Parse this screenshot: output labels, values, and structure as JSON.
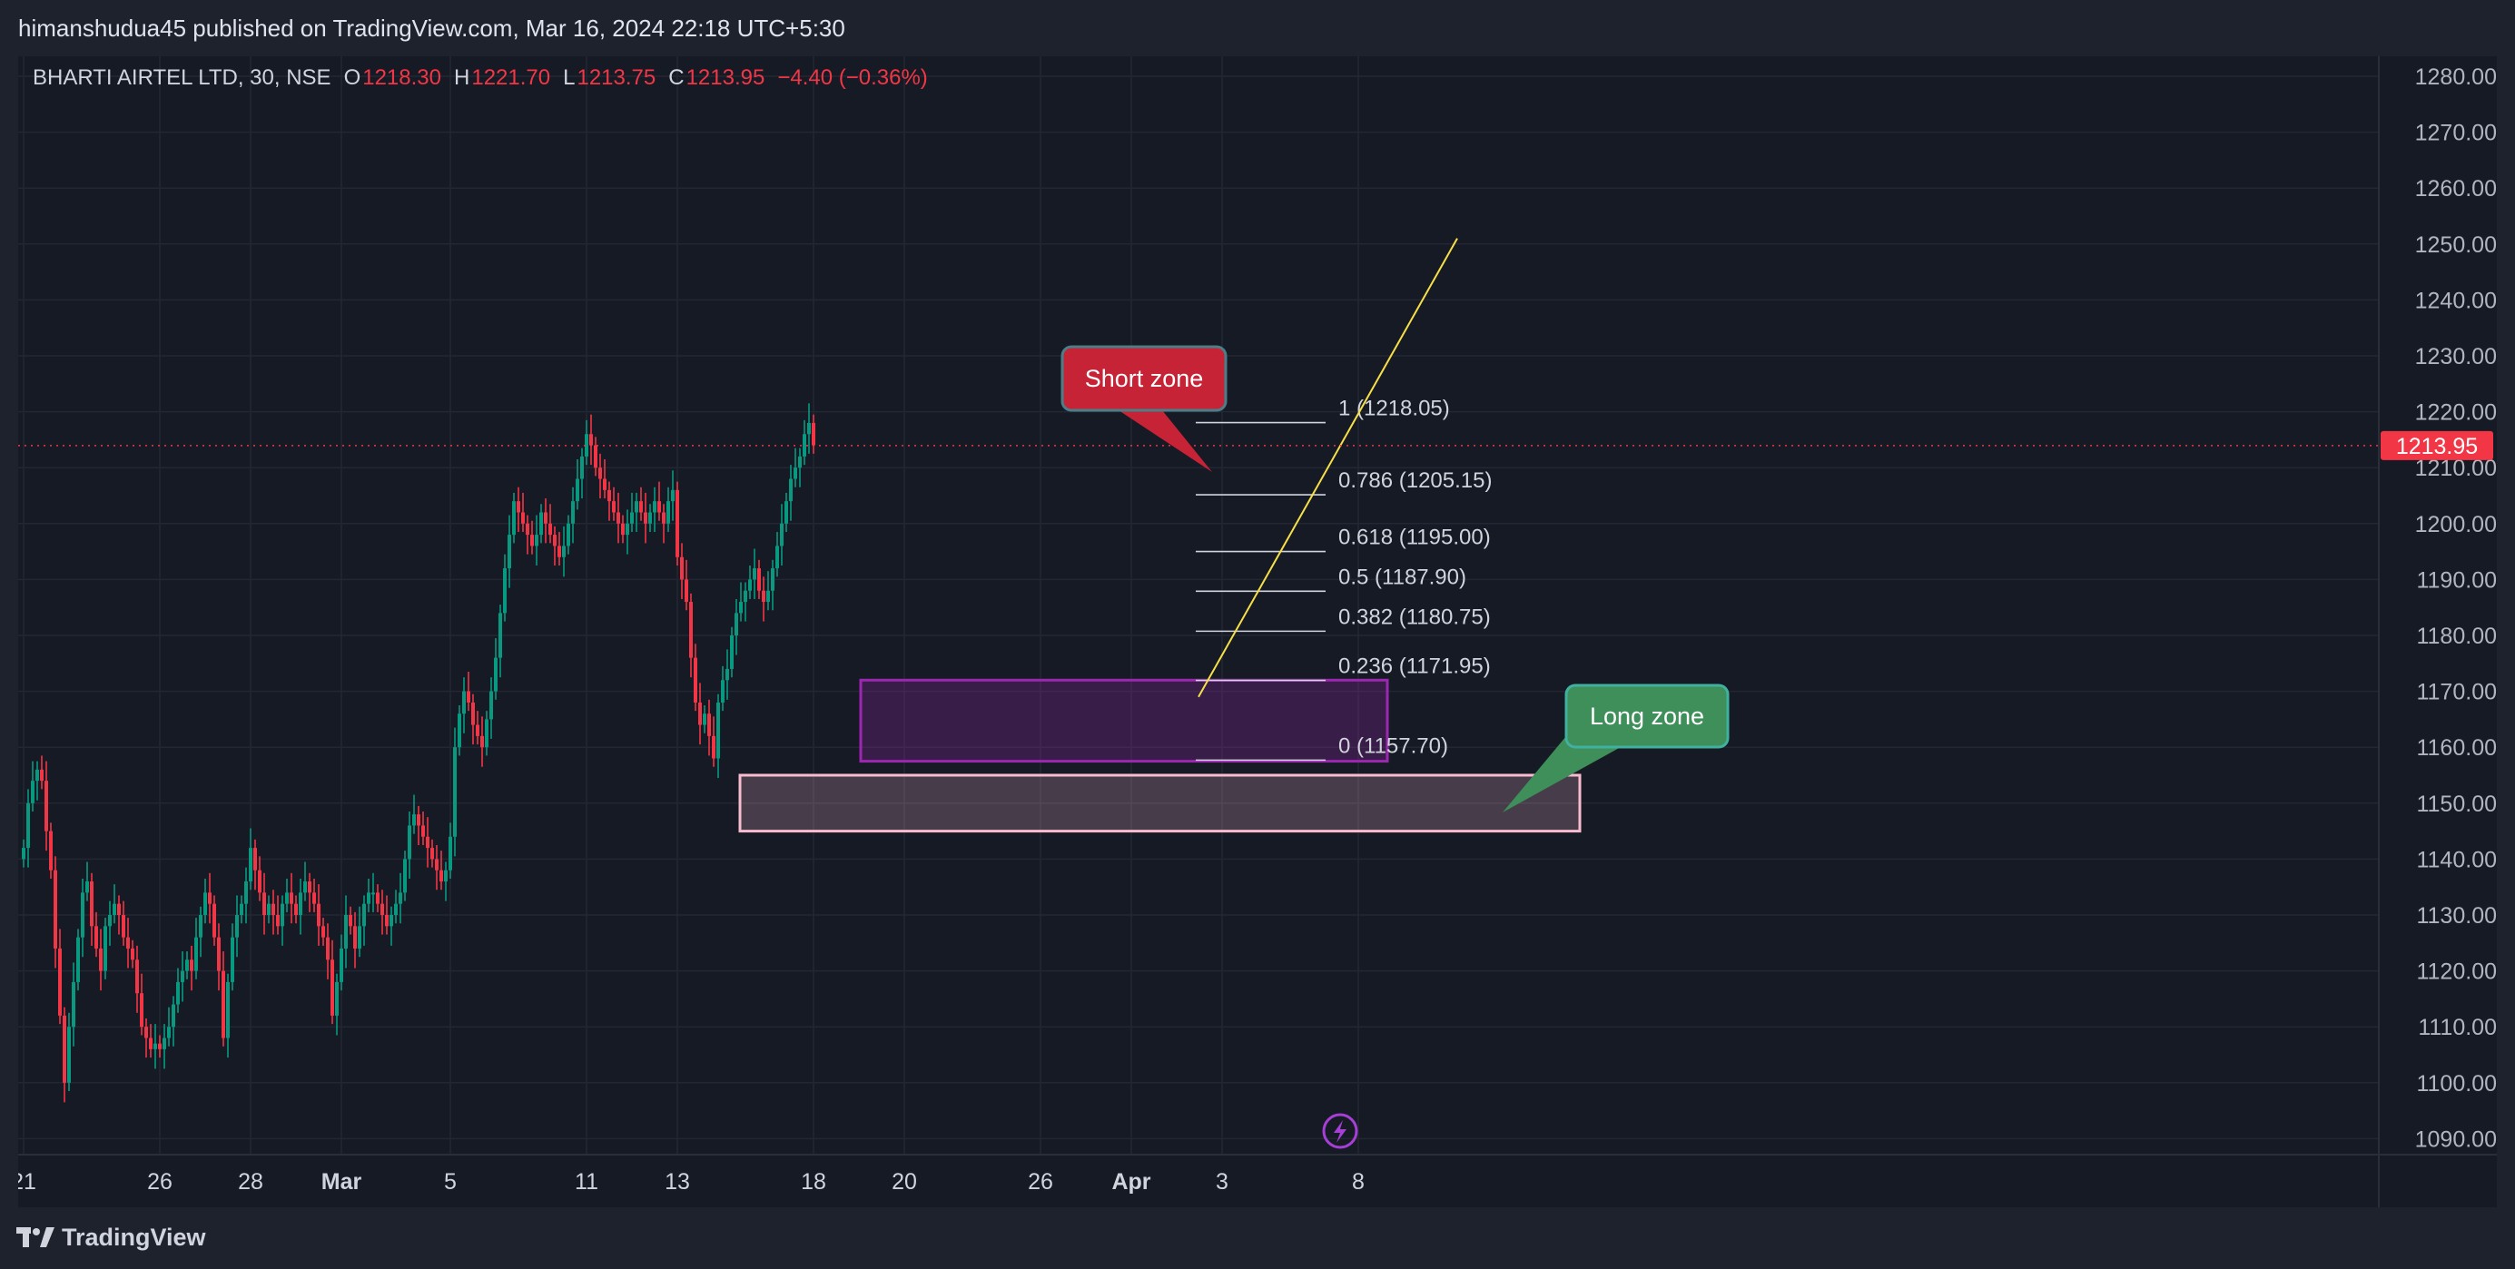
{
  "header": {
    "published_line": "himanshudua45 published on TradingView.com, Mar 16, 2024 22:18 UTC+5:30"
  },
  "legend": {
    "symbol": "BHARTI AIRTEL LTD, 30, NSE",
    "open_label": "O",
    "open_value": "1218.30",
    "high_label": "H",
    "high_value": "1221.70",
    "low_label": "L",
    "low_value": "1213.75",
    "close_label": "C",
    "close_value": "1213.95",
    "change": "−4.40 (−0.36%)"
  },
  "colors": {
    "background": "#161a25",
    "frame": "#1e222d",
    "grid": "#232733",
    "up": "#089981",
    "down": "#f23645",
    "text": "#d1d4dc",
    "trendline": "#f7e047",
    "box_purple": "#9c27b0",
    "box_pink": "#f8bbd0",
    "short_callout": "#c62336",
    "long_callout": "#3f8f5a"
  },
  "price_axis": {
    "ticks": [
      "1280.00",
      "1270.00",
      "1260.00",
      "1250.00",
      "1240.00",
      "1230.00",
      "1220.00",
      "1210.00",
      "1200.00",
      "1190.00",
      "1180.00",
      "1170.00",
      "1160.00",
      "1150.00",
      "1140.00",
      "1130.00",
      "1120.00",
      "1110.00",
      "1100.00",
      "1090.00"
    ],
    "last_price_tag": "1213.95"
  },
  "time_axis": {
    "ticks": [
      {
        "label": "21",
        "bar": 0
      },
      {
        "label": "26",
        "bar": 30
      },
      {
        "label": "28",
        "bar": 50
      },
      {
        "label": "Mar",
        "bar": 70,
        "bold": true
      },
      {
        "label": "5",
        "bar": 94
      },
      {
        "label": "11",
        "bar": 124
      },
      {
        "label": "13",
        "bar": 144
      },
      {
        "label": "18",
        "bar": 174
      },
      {
        "label": "20",
        "bar": 194
      },
      {
        "label": "26",
        "bar": 224
      },
      {
        "label": "Apr",
        "bar": 244,
        "bold": true
      },
      {
        "label": "3",
        "bar": 264
      },
      {
        "label": "8",
        "bar": 294
      }
    ]
  },
  "annotations": {
    "short_zone": "Short zone",
    "long_zone": "Long zone",
    "fib_levels": [
      {
        "ratio": "1",
        "price": 1218.05,
        "label": "1 (1218.05)"
      },
      {
        "ratio": "0.786",
        "price": 1205.15,
        "label": "0.786 (1205.15)"
      },
      {
        "ratio": "0.618",
        "price": 1195.0,
        "label": "0.618 (1195.00)"
      },
      {
        "ratio": "0.5",
        "price": 1187.9,
        "label": "0.5 (1187.90)"
      },
      {
        "ratio": "0.382",
        "price": 1180.75,
        "label": "0.382 (1180.75)"
      },
      {
        "ratio": "0.236",
        "price": 1171.95,
        "label": "0.236 (1171.95)"
      },
      {
        "ratio": "0",
        "price": 1157.7,
        "label": "0 (1157.70)"
      }
    ],
    "demand_box_upper": {
      "price_high": 1172.0,
      "price_low": 1157.5
    },
    "demand_box_lower": {
      "price_high": 1155.0,
      "price_low": 1145.0
    },
    "trendline": {
      "from_price": 1169.0,
      "to_price": 1251.0
    }
  },
  "footer": {
    "brand": "TradingView"
  },
  "chart_data": {
    "type": "candlestick",
    "title": "BHARTI AIRTEL LTD, 30, NSE",
    "ylim": [
      1090,
      1285
    ],
    "y_ticks": [
      1090,
      1100,
      1110,
      1120,
      1130,
      1140,
      1150,
      1160,
      1170,
      1180,
      1190,
      1200,
      1210,
      1220,
      1230,
      1240,
      1250,
      1260,
      1270,
      1280
    ],
    "last_price": 1213.95,
    "series": [
      {
        "name": "price",
        "close_path": [
          1142,
          1150,
          1154,
          1156,
          1154,
          1145,
          1138,
          1124,
          1112,
          1100,
          1110,
          1118,
          1126,
          1134,
          1136,
          1128,
          1124,
          1120,
          1128,
          1130,
          1132,
          1130,
          1126,
          1124,
          1122,
          1116,
          1110,
          1108,
          1106,
          1107,
          1106,
          1108,
          1110,
          1114,
          1118,
          1120,
          1122,
          1120,
          1126,
          1130,
          1134,
          1132,
          1126,
          1120,
          1108,
          1118,
          1126,
          1130,
          1132,
          1136,
          1142,
          1138,
          1134,
          1130,
          1132,
          1130,
          1128,
          1132,
          1134,
          1132,
          1130,
          1134,
          1136,
          1134,
          1132,
          1128,
          1126,
          1122,
          1112,
          1118,
          1124,
          1130,
          1128,
          1124,
          1128,
          1132,
          1134,
          1134,
          1132,
          1130,
          1128,
          1130,
          1132,
          1134,
          1140,
          1146,
          1148,
          1146,
          1144,
          1142,
          1140,
          1138,
          1136,
          1138,
          1144,
          1160,
          1166,
          1170,
          1168,
          1164,
          1162,
          1160,
          1165,
          1170,
          1176,
          1184,
          1192,
          1198,
          1204,
          1202,
          1200,
          1198,
          1196,
          1198,
          1202,
          1200,
          1198,
          1196,
          1194,
          1196,
          1200,
          1204,
          1208,
          1212,
          1216,
          1214,
          1210,
          1208,
          1206,
          1204,
          1202,
          1200,
          1198,
          1200,
          1202,
          1204,
          1202,
          1200,
          1202,
          1204,
          1202,
          1200,
          1204,
          1206,
          1194,
          1190,
          1186,
          1176,
          1168,
          1164,
          1166,
          1162,
          1158,
          1168,
          1172,
          1174,
          1180,
          1184,
          1186,
          1188,
          1190,
          1192,
          1188,
          1186,
          1188,
          1192,
          1196,
          1200,
          1204,
          1208,
          1210,
          1212,
          1216,
          1218,
          1214
        ]
      }
    ]
  }
}
